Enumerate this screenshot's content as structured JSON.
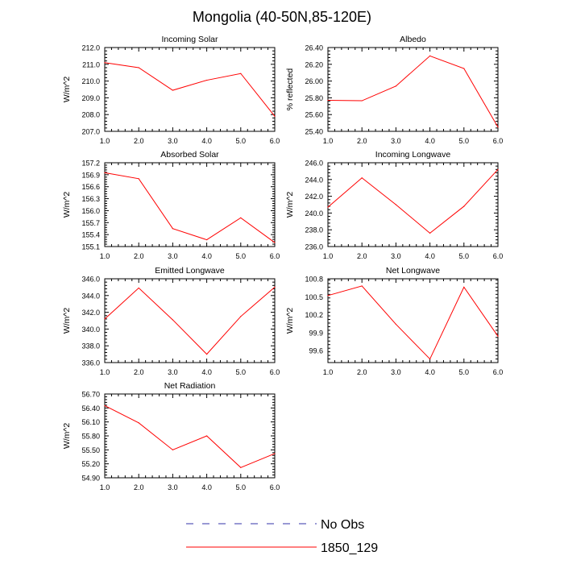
{
  "figure": {
    "title": "Mongolia (40-50N,85-120E)"
  },
  "legend": {
    "placement": "bottom",
    "items": [
      {
        "label": "No Obs",
        "color": "#3333aa",
        "dashed": true
      },
      {
        "label": "1850_129",
        "color": "#ff0000",
        "dashed": false
      }
    ]
  },
  "chart_data": [
    {
      "type": "line",
      "title": "Incoming Solar",
      "ylabel": "W/m^2",
      "x": [
        1,
        2,
        3,
        4,
        5,
        6
      ],
      "xlim": [
        1,
        6
      ],
      "xticks": [
        "1.0",
        "2.0",
        "3.0",
        "4.0",
        "5.0",
        "6.0"
      ],
      "ylim": [
        207.0,
        212.0
      ],
      "yticks": [
        "207.0",
        "208.0",
        "209.0",
        "210.0",
        "211.0",
        "212.0"
      ],
      "series": [
        {
          "color": "#ff0000",
          "values": [
            211.1,
            210.8,
            209.45,
            210.05,
            210.45,
            207.9
          ]
        }
      ]
    },
    {
      "type": "line",
      "title": "Albedo",
      "ylabel": "% reflected",
      "x": [
        1,
        2,
        3,
        4,
        5,
        6
      ],
      "xlim": [
        1,
        6
      ],
      "xticks": [
        "1.0",
        "2.0",
        "3.0",
        "4.0",
        "5.0",
        "6.0"
      ],
      "ylim": [
        25.4,
        26.4
      ],
      "yticks": [
        "25.40",
        "25.60",
        "25.80",
        "26.00",
        "26.20",
        "26.40"
      ],
      "series": [
        {
          "color": "#ff0000",
          "values": [
            25.77,
            25.765,
            25.94,
            26.3,
            26.15,
            25.45
          ]
        }
      ]
    },
    {
      "type": "line",
      "title": "Absorbed Solar",
      "ylabel": "W/m^2",
      "x": [
        1,
        2,
        3,
        4,
        5,
        6
      ],
      "xlim": [
        1,
        6
      ],
      "xticks": [
        "1.0",
        "2.0",
        "3.0",
        "4.0",
        "5.0",
        "6.0"
      ],
      "ylim": [
        155.1,
        157.2
      ],
      "yticks": [
        "155.1",
        "155.4",
        "155.7",
        "156.0",
        "156.3",
        "156.6",
        "156.9",
        "157.2"
      ],
      "series": [
        {
          "color": "#ff0000",
          "values": [
            156.95,
            156.8,
            155.55,
            155.27,
            155.82,
            155.2
          ]
        }
      ]
    },
    {
      "type": "line",
      "title": "Incoming Longwave",
      "ylabel": "W/m^2",
      "x": [
        1,
        2,
        3,
        4,
        5,
        6
      ],
      "xlim": [
        1,
        6
      ],
      "xticks": [
        "1.0",
        "2.0",
        "3.0",
        "4.0",
        "5.0",
        "6.0"
      ],
      "ylim": [
        236.0,
        246.0
      ],
      "yticks": [
        "236.0",
        "238.0",
        "240.0",
        "242.0",
        "244.0",
        "246.0"
      ],
      "series": [
        {
          "color": "#ff0000",
          "values": [
            240.7,
            244.2,
            241.0,
            237.6,
            240.8,
            245.2
          ]
        }
      ]
    },
    {
      "type": "line",
      "title": "Emitted Longwave",
      "ylabel": "W/m^2",
      "x": [
        1,
        2,
        3,
        4,
        5,
        6
      ],
      "xlim": [
        1,
        6
      ],
      "xticks": [
        "1.0",
        "2.0",
        "3.0",
        "4.0",
        "5.0",
        "6.0"
      ],
      "ylim": [
        336.0,
        346.0
      ],
      "yticks": [
        "336.0",
        "338.0",
        "340.0",
        "342.0",
        "344.0",
        "346.0"
      ],
      "series": [
        {
          "color": "#ff0000",
          "values": [
            341.2,
            344.9,
            341.1,
            337.0,
            341.5,
            345.0
          ]
        }
      ]
    },
    {
      "type": "line",
      "title": "Net Longwave",
      "ylabel": "W/m^2",
      "x": [
        1,
        2,
        3,
        4,
        5,
        6
      ],
      "xlim": [
        1,
        6
      ],
      "xticks": [
        "1.0",
        "2.0",
        "3.0",
        "4.0",
        "5.0",
        "6.0"
      ],
      "ylim": [
        99.4,
        100.8
      ],
      "yticks": [
        "99.6",
        "99.9",
        "100.2",
        "100.5",
        "100.8"
      ],
      "series": [
        {
          "color": "#ff0000",
          "values": [
            100.52,
            100.68,
            100.04,
            99.46,
            100.66,
            99.84
          ]
        }
      ]
    },
    {
      "type": "line",
      "title": "Net Radiation",
      "ylabel": "W/m^2",
      "x": [
        1,
        2,
        3,
        4,
        5,
        6
      ],
      "xlim": [
        1,
        6
      ],
      "xticks": [
        "1.0",
        "2.0",
        "3.0",
        "4.0",
        "5.0",
        "6.0"
      ],
      "ylim": [
        54.9,
        56.7
      ],
      "yticks": [
        "54.90",
        "55.20",
        "55.50",
        "55.80",
        "56.10",
        "56.40",
        "56.70"
      ],
      "series": [
        {
          "color": "#ff0000",
          "values": [
            56.45,
            56.08,
            55.5,
            55.8,
            55.12,
            55.42
          ]
        }
      ]
    }
  ]
}
